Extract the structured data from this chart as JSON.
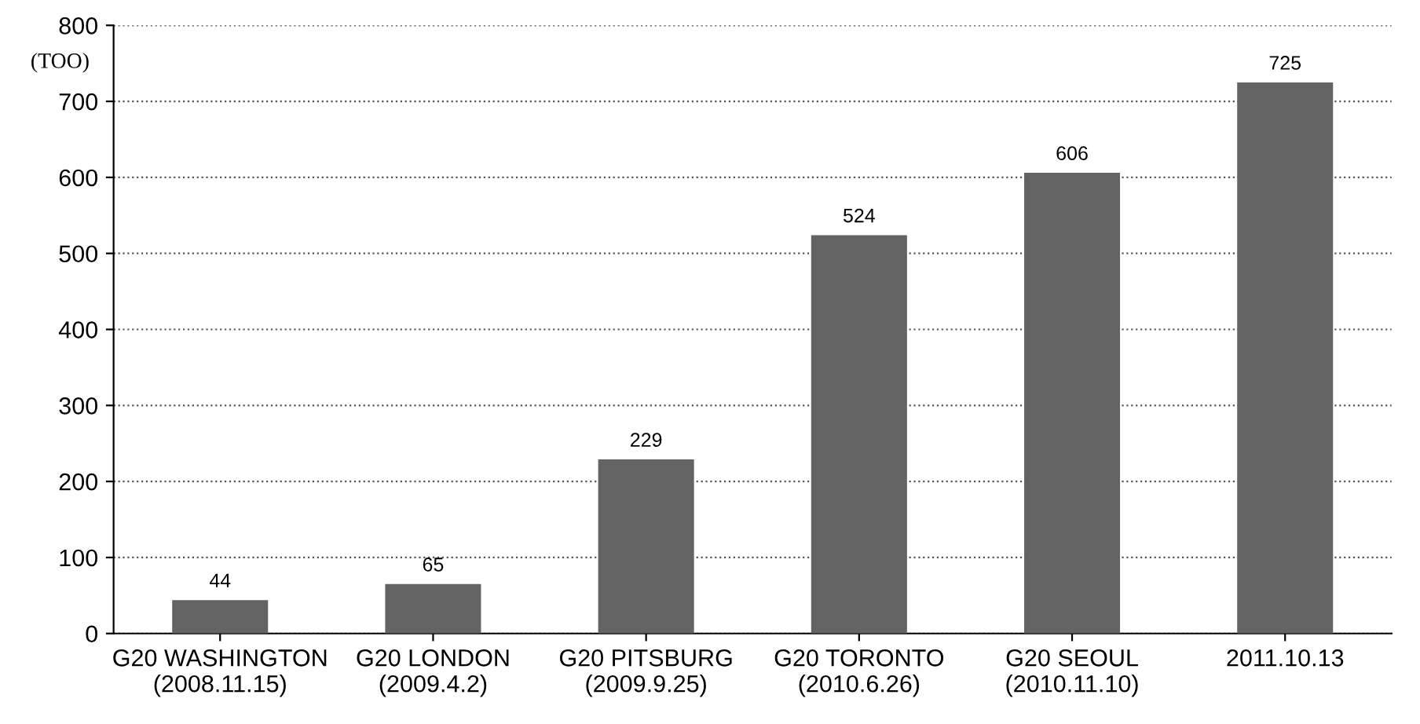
{
  "chart_data": {
    "type": "bar",
    "ylabel": "(TOO)",
    "categories": [
      "G20 WASHINGTON\n(2008.11.15)",
      "G20 LONDON\n(2009.4.2)",
      "G20 PITSBURG\n(2009.9.25)",
      "G20 TORONTO\n(2010.6.26)",
      "G20 SEOUL\n(2010.11.10)",
      "2011.10.13"
    ],
    "values": [
      44,
      65,
      229,
      524,
      606,
      725
    ],
    "color": "#636363",
    "ylim": [
      0,
      800
    ],
    "yticks": [
      0,
      100,
      200,
      300,
      400,
      500,
      600,
      700,
      800
    ],
    "grid": "y",
    "data_labels": true
  }
}
